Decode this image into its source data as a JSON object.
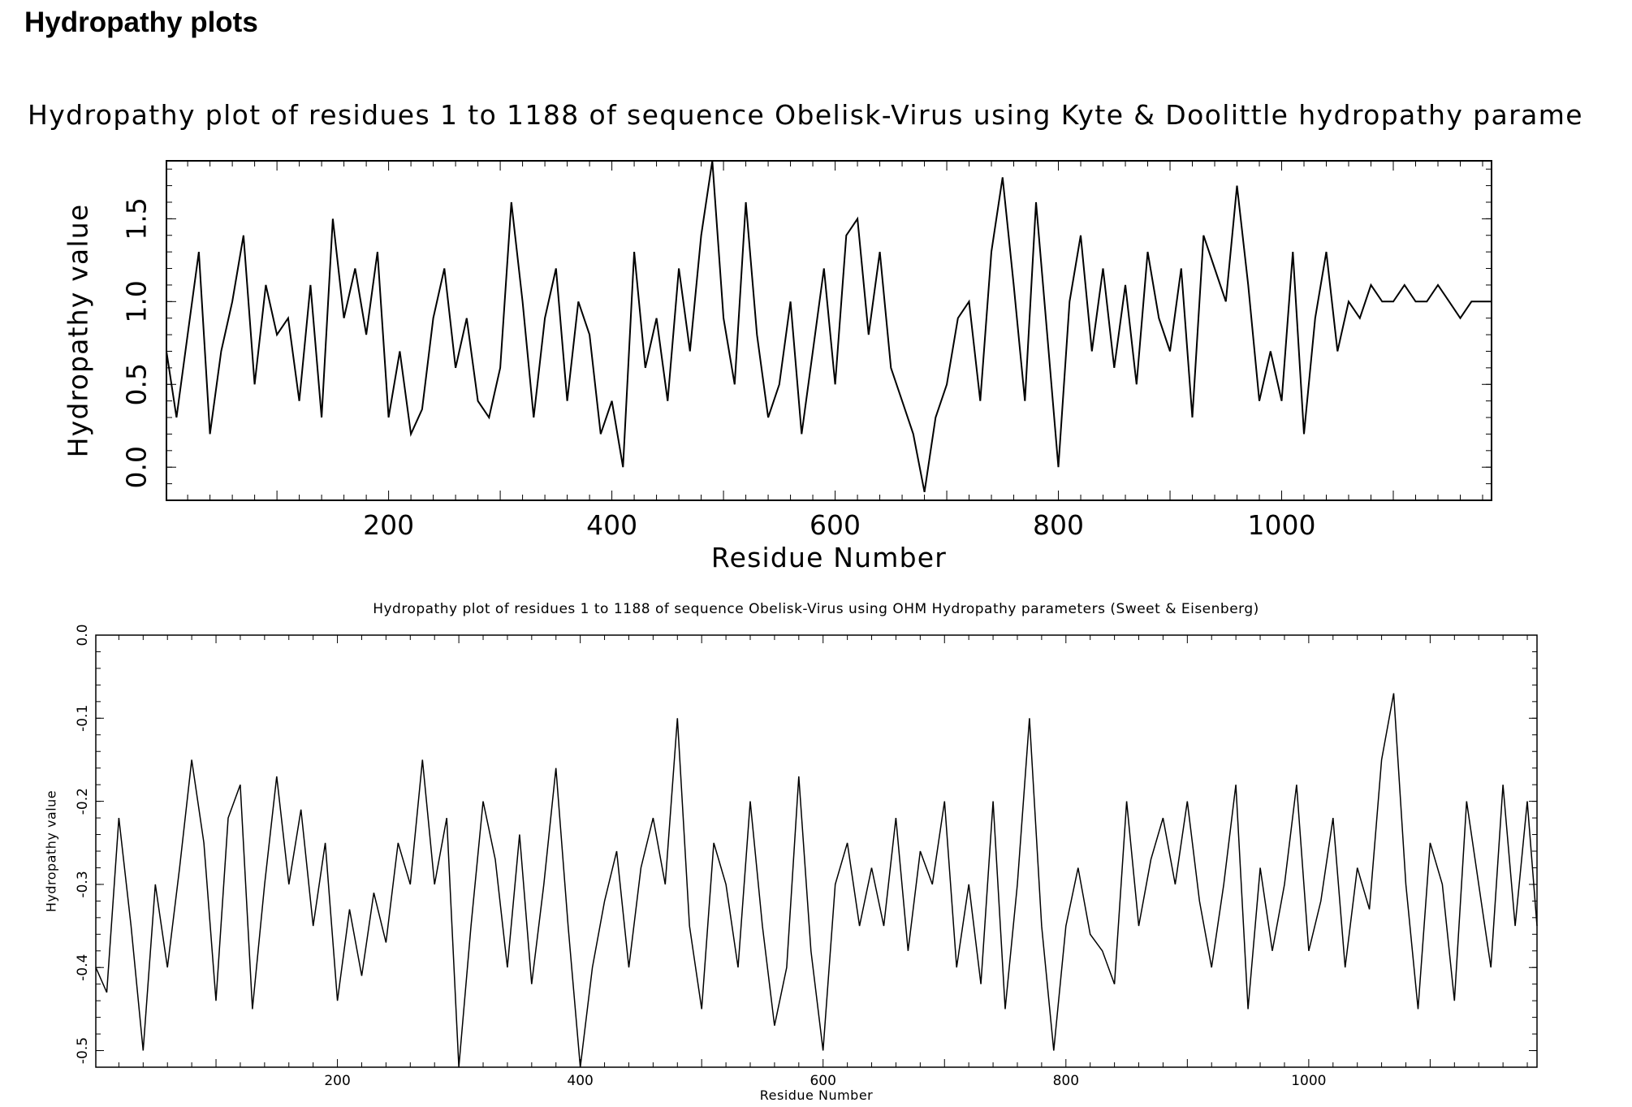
{
  "page": {
    "heading": "Hydropathy plots"
  },
  "chart_data": [
    {
      "type": "line",
      "title": "Hydropathy plot of residues 1 to 1188 of sequence Obelisk-Virus using Kyte & Doolittle hydropathy parame",
      "xlabel": "Residue Number",
      "ylabel": "Hydropathy value",
      "xlim": [
        1,
        1188
      ],
      "ylim": [
        -0.2,
        1.85
      ],
      "x_ticks": [
        200,
        400,
        600,
        800,
        1000
      ],
      "x_tick_labels": [
        "200",
        "400",
        "600",
        "800",
        "1000"
      ],
      "y_ticks": [
        0.0,
        0.5,
        1.0,
        1.5
      ],
      "y_tick_labels": [
        "0.0",
        "0.5",
        "1.0",
        "1.5"
      ],
      "grid": false,
      "series": [
        {
          "x": [
            1,
            10,
            20,
            30,
            40,
            50,
            60,
            70,
            80,
            90,
            100,
            110,
            120,
            130,
            140,
            150,
            160,
            170,
            180,
            190,
            200,
            210,
            220,
            230,
            240,
            250,
            260,
            270,
            280,
            290,
            300,
            310,
            320,
            330,
            340,
            350,
            360,
            370,
            380,
            390,
            400,
            410,
            420,
            430,
            440,
            450,
            460,
            470,
            480,
            490,
            500,
            510,
            520,
            530,
            540,
            550,
            560,
            570,
            580,
            590,
            600,
            610,
            620,
            630,
            640,
            650,
            660,
            670,
            680,
            690,
            700,
            710,
            720,
            730,
            740,
            750,
            760,
            770,
            780,
            790,
            800,
            810,
            820,
            830,
            840,
            850,
            860,
            870,
            880,
            890,
            900,
            910,
            920,
            930,
            940,
            950,
            960,
            970,
            980,
            990,
            1000,
            1010,
            1020,
            1030,
            1040,
            1050,
            1060,
            1070,
            1080,
            1090,
            1100,
            1110,
            1120,
            1130,
            1140,
            1150,
            1160,
            1170,
            1180,
            1188
          ],
          "y": [
            0.7,
            0.3,
            0.8,
            1.3,
            0.2,
            0.7,
            1.0,
            1.4,
            0.5,
            1.1,
            0.8,
            0.9,
            0.4,
            1.1,
            0.3,
            1.5,
            0.9,
            1.2,
            0.8,
            1.3,
            0.3,
            0.7,
            0.2,
            0.35,
            0.9,
            1.2,
            0.6,
            0.9,
            0.4,
            0.3,
            0.6,
            1.6,
            1.0,
            0.3,
            0.9,
            1.2,
            0.4,
            1.0,
            0.8,
            0.2,
            0.4,
            0.0,
            1.3,
            0.6,
            0.9,
            0.4,
            1.2,
            0.7,
            1.4,
            1.85,
            0.9,
            0.5,
            1.6,
            0.8,
            0.3,
            0.5,
            1.0,
            0.2,
            0.7,
            1.2,
            0.5,
            1.4,
            1.5,
            0.8,
            1.3,
            0.6,
            0.4,
            0.2,
            -0.15,
            0.3,
            0.5,
            0.9,
            1.0,
            0.4,
            1.3,
            1.75,
            1.1,
            0.4,
            1.6,
            0.8,
            0.0,
            1.0,
            1.4,
            0.7,
            1.2,
            0.6,
            1.1,
            0.5,
            1.3,
            0.9,
            0.7,
            1.2,
            0.3,
            1.4,
            1.2,
            1.0,
            1.7,
            1.1,
            0.4,
            0.7,
            0.4,
            1.3,
            0.2,
            0.9,
            1.3,
            0.7,
            1.0,
            0.9,
            1.1,
            1.0,
            1.0,
            1.1,
            1.0,
            1.0,
            1.1,
            1.0,
            0.9,
            1.0,
            1.0,
            1.0
          ]
        }
      ]
    },
    {
      "type": "line",
      "title": "Hydropathy plot of residues 1 to 1188 of sequence Obelisk-Virus using OHM  Hydropathy parameters (Sweet & Eisenberg)",
      "xlabel": "Residue Number",
      "ylabel": "Hydropathy value",
      "xlim": [
        1,
        1188
      ],
      "ylim": [
        -0.52,
        0.0
      ],
      "x_ticks": [
        200,
        400,
        600,
        800,
        1000
      ],
      "x_tick_labels": [
        "200",
        "400",
        "600",
        "800",
        "1000"
      ],
      "y_ticks": [
        0.0,
        -0.1,
        -0.2,
        -0.3,
        -0.4,
        -0.5
      ],
      "y_tick_labels": [
        "0.0",
        "-0.1",
        "-0.2",
        "-0.3",
        "-0.4",
        "-0.5"
      ],
      "grid": false,
      "series": [
        {
          "x": [
            1,
            10,
            20,
            30,
            40,
            50,
            60,
            70,
            80,
            90,
            100,
            110,
            120,
            130,
            140,
            150,
            160,
            170,
            180,
            190,
            200,
            210,
            220,
            230,
            240,
            250,
            260,
            270,
            280,
            290,
            300,
            310,
            320,
            330,
            340,
            350,
            360,
            370,
            380,
            390,
            400,
            410,
            420,
            430,
            440,
            450,
            460,
            470,
            480,
            490,
            500,
            510,
            520,
            530,
            540,
            550,
            560,
            570,
            580,
            590,
            600,
            610,
            620,
            630,
            640,
            650,
            660,
            670,
            680,
            690,
            700,
            710,
            720,
            730,
            740,
            750,
            760,
            770,
            780,
            790,
            800,
            810,
            820,
            830,
            840,
            850,
            860,
            870,
            880,
            890,
            900,
            910,
            920,
            930,
            940,
            950,
            960,
            970,
            980,
            990,
            1000,
            1010,
            1020,
            1030,
            1040,
            1050,
            1060,
            1070,
            1080,
            1090,
            1100,
            1110,
            1120,
            1130,
            1140,
            1150,
            1160,
            1170,
            1180,
            1188
          ],
          "y": [
            -0.4,
            -0.43,
            -0.22,
            -0.35,
            -0.5,
            -0.3,
            -0.4,
            -0.28,
            -0.15,
            -0.25,
            -0.44,
            -0.22,
            -0.18,
            -0.45,
            -0.3,
            -0.17,
            -0.3,
            -0.21,
            -0.35,
            -0.25,
            -0.44,
            -0.33,
            -0.41,
            -0.31,
            -0.37,
            -0.25,
            -0.3,
            -0.15,
            -0.3,
            -0.22,
            -0.52,
            -0.35,
            -0.2,
            -0.27,
            -0.4,
            -0.24,
            -0.42,
            -0.3,
            -0.16,
            -0.35,
            -0.52,
            -0.4,
            -0.32,
            -0.26,
            -0.4,
            -0.28,
            -0.22,
            -0.3,
            -0.1,
            -0.35,
            -0.45,
            -0.25,
            -0.3,
            -0.4,
            -0.2,
            -0.35,
            -0.47,
            -0.4,
            -0.17,
            -0.38,
            -0.5,
            -0.3,
            -0.25,
            -0.35,
            -0.28,
            -0.35,
            -0.22,
            -0.38,
            -0.26,
            -0.3,
            -0.2,
            -0.4,
            -0.3,
            -0.42,
            -0.2,
            -0.45,
            -0.3,
            -0.1,
            -0.35,
            -0.5,
            -0.35,
            -0.28,
            -0.36,
            -0.38,
            -0.42,
            -0.2,
            -0.35,
            -0.27,
            -0.22,
            -0.3,
            -0.2,
            -0.32,
            -0.4,
            -0.3,
            -0.18,
            -0.45,
            -0.28,
            -0.38,
            -0.3,
            -0.18,
            -0.38,
            -0.32,
            -0.22,
            -0.4,
            -0.28,
            -0.33,
            -0.15,
            -0.07,
            -0.3,
            -0.45,
            -0.25,
            -0.3,
            -0.44,
            -0.2,
            -0.3,
            -0.4,
            -0.18,
            -0.35,
            -0.2,
            -0.35
          ]
        }
      ]
    }
  ]
}
